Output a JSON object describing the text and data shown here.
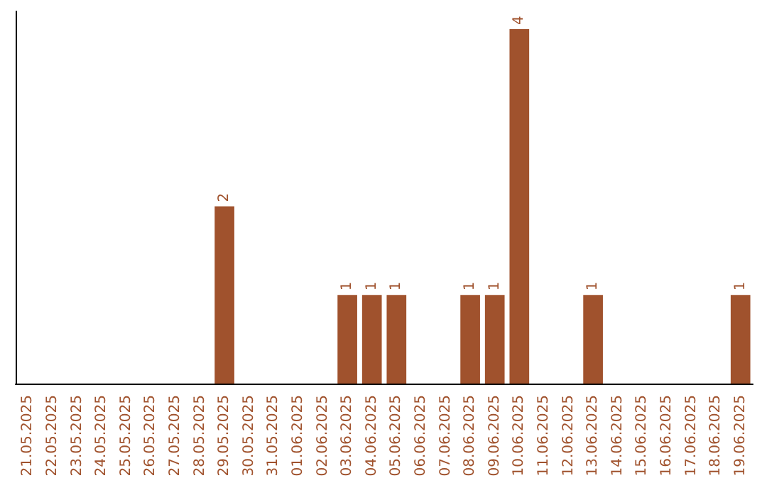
{
  "chart_data": {
    "type": "bar",
    "categories": [
      "21.05.2025",
      "22.05.2025",
      "23.05.2025",
      "24.05.2025",
      "25.05.2025",
      "26.05.2025",
      "27.05.2025",
      "28.05.2025",
      "29.05.2025",
      "30.05.2025",
      "31.05.2025",
      "01.06.2025",
      "02.06.2025",
      "03.06.2025",
      "04.06.2025",
      "05.06.2025",
      "06.06.2025",
      "07.06.2025",
      "08.06.2025",
      "09.06.2025",
      "10.06.2025",
      "11.06.2025",
      "12.06.2025",
      "13.06.2025",
      "14.06.2025",
      "15.06.2025",
      "16.06.2025",
      "17.06.2025",
      "18.06.2025",
      "19.06.2025"
    ],
    "values": [
      0,
      0,
      0,
      0,
      0,
      0,
      0,
      0,
      2,
      0,
      0,
      0,
      0,
      1,
      1,
      1,
      0,
      0,
      1,
      1,
      4,
      0,
      0,
      1,
      0,
      0,
      0,
      0,
      0,
      1
    ],
    "value_labels": [
      null,
      null,
      null,
      null,
      null,
      null,
      null,
      null,
      "2",
      null,
      null,
      null,
      null,
      "1",
      "1",
      "1",
      null,
      null,
      "1",
      "1",
      "4",
      null,
      null,
      "1",
      null,
      null,
      null,
      null,
      null,
      "1"
    ],
    "color": "#a0522d",
    "ylim": [
      0,
      4.2
    ],
    "grid": false
  }
}
